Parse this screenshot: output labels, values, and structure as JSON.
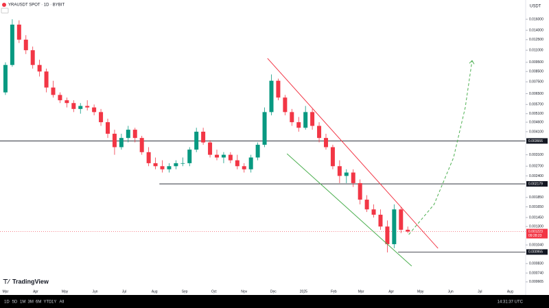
{
  "title": "YRAUSDT SPOT · 1D · BYBIT",
  "currency": "USDT",
  "branding": "TradingView",
  "toolbar": {
    "ranges": [
      "1D",
      "5D",
      "1M",
      "3M",
      "6M",
      "YTD",
      "1Y",
      "All"
    ],
    "time": "14:31:37 UTC"
  },
  "chart_data": {
    "type": "candlestick",
    "log_scale": true,
    "up_color": "#089981",
    "down_color": "#f23645",
    "x": [
      0,
      7,
      14,
      21,
      28,
      35,
      42,
      49,
      56,
      63,
      70,
      77,
      84,
      91,
      98,
      105,
      112,
      119,
      126,
      133,
      140,
      147,
      154,
      161,
      168,
      175,
      182,
      189,
      196,
      203,
      210,
      217,
      224,
      231,
      238,
      245,
      252,
      259,
      266,
      273,
      280,
      287,
      294,
      301,
      308,
      315,
      322,
      329,
      336,
      343,
      350,
      357,
      364,
      371,
      378,
      385,
      392,
      399,
      406,
      413
    ],
    "open": [
      0.0066,
      0.0092,
      0.015,
      0.0125,
      0.011,
      0.0092,
      0.0085,
      0.007,
      0.0064,
      0.006,
      0.0058,
      0.0054,
      0.0056,
      0.0055,
      0.0052,
      0.0046,
      0.004,
      0.0034,
      0.0038,
      0.0042,
      0.0038,
      0.0032,
      0.0028,
      0.0027,
      0.0026,
      0.0027,
      0.0028,
      0.0028,
      0.0033,
      0.0041,
      0.0036,
      0.0031,
      0.003,
      0.0031,
      0.0029,
      0.0027,
      0.0026,
      0.003,
      0.0035,
      0.0052,
      0.0076,
      0.0062,
      0.0052,
      0.0046,
      0.0043,
      0.0052,
      0.0044,
      0.0038,
      0.0034,
      0.0027,
      0.0024,
      0.0025,
      0.0022,
      0.0018,
      0.0016,
      0.0015,
      0.0013,
      0.00105,
      0.0016,
      0.00125
    ],
    "high": [
      0.0095,
      0.016,
      0.0158,
      0.0132,
      0.0115,
      0.0098,
      0.0088,
      0.0076,
      0.0066,
      0.0062,
      0.006,
      0.0058,
      0.006,
      0.0057,
      0.0054,
      0.0048,
      0.0042,
      0.004,
      0.0044,
      0.0043,
      0.0039,
      0.0034,
      0.003,
      0.0029,
      0.0028,
      0.0029,
      0.003,
      0.0034,
      0.0043,
      0.0043,
      0.0037,
      0.0033,
      0.0032,
      0.0032,
      0.0031,
      0.0028,
      0.0031,
      0.0036,
      0.0055,
      0.0082,
      0.0078,
      0.0064,
      0.0054,
      0.0049,
      0.0056,
      0.0054,
      0.0046,
      0.004,
      0.0035,
      0.0029,
      0.0026,
      0.0026,
      0.0023,
      0.0019,
      0.0017,
      0.0016,
      0.0014,
      0.0017,
      0.00165,
      0.0013
    ],
    "low": [
      0.0064,
      0.009,
      0.012,
      0.0105,
      0.0088,
      0.008,
      0.0066,
      0.0062,
      0.0058,
      0.0055,
      0.0052,
      0.0051,
      0.0053,
      0.005,
      0.0044,
      0.0038,
      0.0031,
      0.0033,
      0.0036,
      0.0036,
      0.0031,
      0.0027,
      0.0026,
      0.0025,
      0.0025,
      0.0026,
      0.0027,
      0.0027,
      0.0032,
      0.0035,
      0.003,
      0.0029,
      0.0028,
      0.0028,
      0.0026,
      0.0025,
      0.0025,
      0.0029,
      0.0034,
      0.005,
      0.006,
      0.005,
      0.0044,
      0.0041,
      0.0042,
      0.0042,
      0.0036,
      0.0033,
      0.0026,
      0.0022,
      0.0022,
      0.0021,
      0.0017,
      0.00155,
      0.00145,
      0.00125,
      0.00095,
      0.001,
      0.0012,
      0.0012
    ],
    "close": [
      0.0092,
      0.015,
      0.0125,
      0.011,
      0.0092,
      0.0085,
      0.007,
      0.0064,
      0.006,
      0.0058,
      0.0054,
      0.0056,
      0.0055,
      0.0052,
      0.0046,
      0.004,
      0.0034,
      0.0038,
      0.0042,
      0.0038,
      0.0032,
      0.0028,
      0.0027,
      0.0026,
      0.0027,
      0.0028,
      0.0028,
      0.0033,
      0.0041,
      0.0036,
      0.0031,
      0.003,
      0.0031,
      0.0029,
      0.0027,
      0.0026,
      0.003,
      0.0035,
      0.0052,
      0.0076,
      0.0062,
      0.0052,
      0.0046,
      0.0043,
      0.0052,
      0.0044,
      0.0038,
      0.0034,
      0.0027,
      0.0024,
      0.0025,
      0.0022,
      0.0018,
      0.0016,
      0.0015,
      0.0013,
      0.00105,
      0.0016,
      0.00125,
      0.001223
    ],
    "xlim": [
      -5.6,
      534
    ],
    "xticks": [
      {
        "value": 0,
        "label": "Mar"
      },
      {
        "value": 31,
        "label": "Apr"
      },
      {
        "value": 61,
        "label": "May"
      },
      {
        "value": 92,
        "label": "Jun"
      },
      {
        "value": 122,
        "label": "Jul"
      },
      {
        "value": 153,
        "label": "Aug"
      },
      {
        "value": 184,
        "label": "Sep"
      },
      {
        "value": 214,
        "label": "Oct"
      },
      {
        "value": 245,
        "label": "Nov"
      },
      {
        "value": 275,
        "label": "Dec"
      },
      {
        "value": 306,
        "label": "2025"
      },
      {
        "value": 337,
        "label": "Feb"
      },
      {
        "value": 365,
        "label": "Mar"
      },
      {
        "value": 396,
        "label": "Apr"
      },
      {
        "value": 426,
        "label": "May"
      },
      {
        "value": 457,
        "label": "Jun"
      },
      {
        "value": 487,
        "label": "Jul"
      },
      {
        "value": 518,
        "label": "Aug"
      }
    ],
    "ylim": [
      0.000577,
      0.0174
    ],
    "yticks": [
      {
        "value": 0.016,
        "label": "0.016000"
      },
      {
        "value": 0.014,
        "label": "0.014000"
      },
      {
        "value": 0.0125,
        "label": "0.012500"
      },
      {
        "value": 0.011,
        "label": "0.011000"
      },
      {
        "value": 0.0095,
        "label": "0.009500"
      },
      {
        "value": 0.0085,
        "label": "0.008500"
      },
      {
        "value": 0.0075,
        "label": "0.007500"
      },
      {
        "value": 0.0065,
        "label": "0.006500"
      },
      {
        "value": 0.0057,
        "label": "0.005700"
      },
      {
        "value": 0.0051,
        "label": "0.005100"
      },
      {
        "value": 0.0046,
        "label": "0.004600"
      },
      {
        "value": 0.0041,
        "label": "0.004100"
      },
      {
        "value": 0.0031,
        "label": "0.003100"
      },
      {
        "value": 0.0027,
        "label": "0.002700"
      },
      {
        "value": 0.0024,
        "label": "0.002400"
      },
      {
        "value": 0.00185,
        "label": "0.001850"
      },
      {
        "value": 0.00165,
        "label": "0.001650"
      },
      {
        "value": 0.00145,
        "label": "0.001450"
      },
      {
        "value": 0.0013,
        "label": "0.001300"
      },
      {
        "value": 0.00104,
        "label": "0.001040"
      },
      {
        "value": 0.00083,
        "label": "0.000830"
      },
      {
        "value": 0.00074,
        "label": "0.000740"
      },
      {
        "value": 0.000665,
        "label": "0.000665"
      }
    ],
    "hlines": [
      0.003666,
      0.002179,
      0.000955
    ],
    "hline_starts": [
      -5.6,
      158,
      403
    ],
    "hline_color": "#131722",
    "last_price": 0.001223,
    "countdown": "09:28:23",
    "trendlines": [
      {
        "color": "#f23645",
        "x": [
          269,
          444
        ],
        "y": [
          0.00997,
          0.000999
        ]
      },
      {
        "color": "#4caf50",
        "x": [
          289,
          417
        ],
        "y": [
          0.00314,
          0.000805
        ]
      }
    ],
    "projection": {
      "color": "#4caf50",
      "x": [
        414,
        440,
        460,
        472,
        479
      ],
      "y": [
        0.00118,
        0.0017,
        0.003,
        0.0055,
        0.0097
      ]
    }
  }
}
